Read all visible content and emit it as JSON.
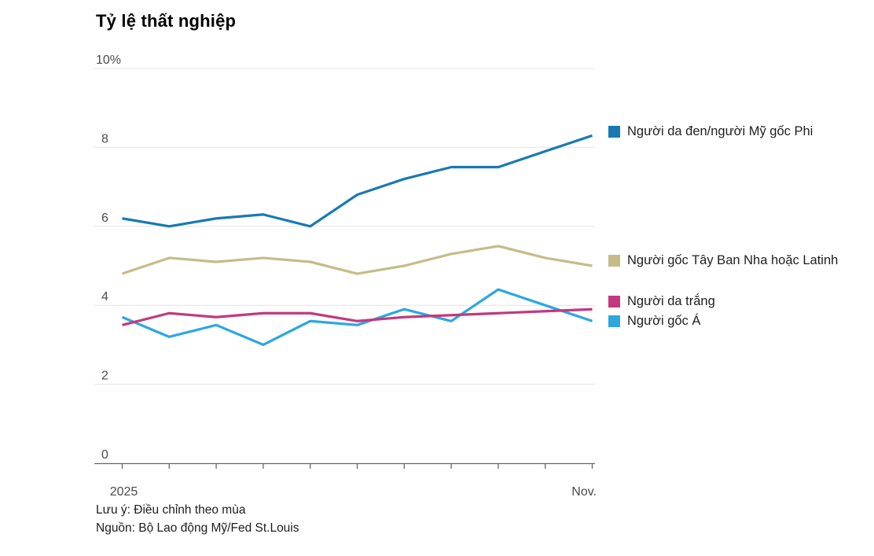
{
  "title": "Tỷ lệ thất nghiệp",
  "chart_data": {
    "type": "line",
    "title": "Tỷ lệ thất nghiệp",
    "n_points": 11,
    "x_axis": {
      "first_label": "2025",
      "last_label": "Nov."
    },
    "ylim": [
      0,
      10
    ],
    "yticks": [
      0,
      2,
      4,
      6,
      8,
      10
    ],
    "ytick_labels": [
      "0",
      "2",
      "4",
      "6",
      "8",
      "10%"
    ],
    "grid": "horizontal",
    "legend_position": "right",
    "series": [
      {
        "name": "Người da đen/người Mỹ gốc Phi",
        "color": "#1879b2",
        "values": [
          6.2,
          6.0,
          6.2,
          6.3,
          6.0,
          6.8,
          7.2,
          7.5,
          7.5,
          7.9,
          8.3
        ]
      },
      {
        "name": "Người gốc Tây Ban Nha hoặc Latinh",
        "color": "#c5bc88",
        "values": [
          4.8,
          5.2,
          5.1,
          5.2,
          5.1,
          4.8,
          5.0,
          5.3,
          5.5,
          5.2,
          5.0
        ]
      },
      {
        "name": "Người da trắng",
        "color": "#c2397e",
        "values": [
          3.5,
          3.8,
          3.7,
          3.8,
          3.8,
          3.6,
          3.7,
          3.75,
          3.8,
          3.85,
          3.9
        ]
      },
      {
        "name": "Người gốc Á",
        "color": "#2da7e0",
        "values": [
          3.7,
          3.2,
          3.5,
          3.0,
          3.6,
          3.5,
          3.9,
          3.6,
          4.4,
          4.0,
          3.6
        ]
      }
    ],
    "colors": {
      "gridline": "#e4e4e4",
      "axis": "#666666",
      "tick_text": "#4b4b4b"
    }
  },
  "footer": {
    "note": "Lưu ý: Điều chỉnh theo mùa",
    "source": "Nguồn: Bộ Lao động Mỹ/Fed St.Louis"
  }
}
